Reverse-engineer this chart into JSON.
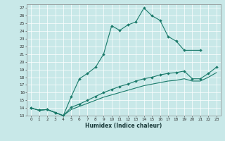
{
  "xlabel": "Humidex (Indice chaleur)",
  "bg_color": "#c8e8e8",
  "line_color": "#1a7a6a",
  "grid_color": "#ffffff",
  "xlim": [
    -0.5,
    23.5
  ],
  "ylim": [
    13,
    27.5
  ],
  "xticks": [
    0,
    1,
    2,
    3,
    4,
    5,
    6,
    7,
    8,
    9,
    10,
    11,
    12,
    13,
    14,
    15,
    16,
    17,
    18,
    19,
    20,
    21,
    22,
    23
  ],
  "yticks": [
    13,
    14,
    15,
    16,
    17,
    18,
    19,
    20,
    21,
    22,
    23,
    24,
    25,
    26,
    27
  ],
  "curve1_x": [
    0,
    1,
    2,
    3,
    4,
    5,
    6,
    7,
    8,
    9,
    10,
    11,
    12,
    13,
    14,
    15,
    16,
    17,
    18,
    19,
    21
  ],
  "curve1_y": [
    14.0,
    13.7,
    13.8,
    13.4,
    13.0,
    15.5,
    17.8,
    18.5,
    19.3,
    21.0,
    24.7,
    24.1,
    24.8,
    25.2,
    27.0,
    26.0,
    25.4,
    23.3,
    22.7,
    21.5,
    21.5
  ],
  "curve2_x": [
    0,
    1,
    2,
    3,
    4,
    5,
    6,
    7,
    8,
    9,
    10,
    11,
    12,
    13,
    14,
    15,
    16,
    17,
    18,
    19,
    20,
    21,
    22,
    23
  ],
  "curve2_y": [
    14.0,
    13.7,
    13.8,
    13.4,
    13.0,
    14.1,
    14.5,
    15.0,
    15.5,
    16.0,
    16.4,
    16.8,
    17.1,
    17.5,
    17.8,
    18.0,
    18.3,
    18.5,
    18.6,
    18.8,
    17.8,
    17.8,
    18.5,
    19.3
  ],
  "curve3_x": [
    0,
    1,
    2,
    3,
    4,
    5,
    6,
    7,
    8,
    9,
    10,
    11,
    12,
    13,
    14,
    15,
    16,
    17,
    18,
    19,
    20,
    21,
    22,
    23
  ],
  "curve3_y": [
    14.0,
    13.7,
    13.8,
    13.4,
    13.0,
    13.8,
    14.2,
    14.6,
    15.0,
    15.4,
    15.7,
    16.0,
    16.3,
    16.6,
    16.9,
    17.1,
    17.3,
    17.5,
    17.6,
    17.8,
    17.5,
    17.5,
    18.0,
    18.6
  ]
}
